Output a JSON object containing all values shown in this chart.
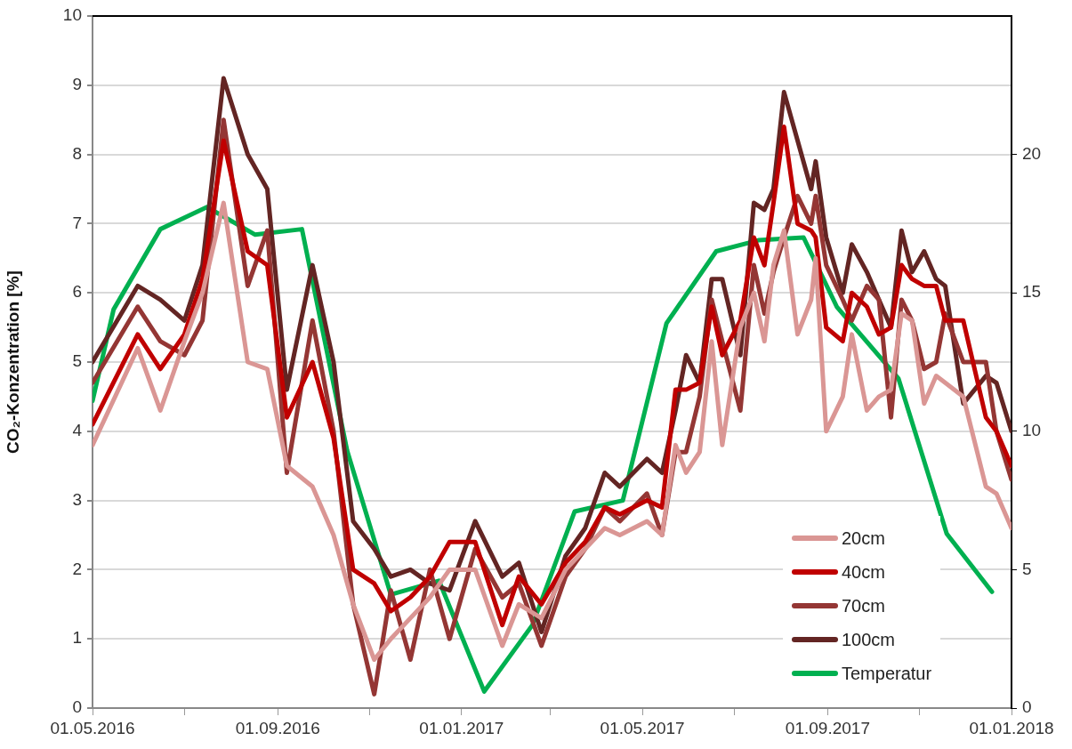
{
  "chart_data": {
    "type": "line",
    "ylabel": "CO₂-Konzentration [%]",
    "xlim": [
      "2016-05-01",
      "2018-01-01"
    ],
    "xticks": [
      {
        "value": "2016-05-01",
        "label": "01.05.2016"
      },
      {
        "value": "2016-07-01",
        "label": null
      },
      {
        "value": "2016-09-01",
        "label": "01.09.2016"
      },
      {
        "value": "2016-11-01",
        "label": null
      },
      {
        "value": "2017-01-01",
        "label": "01.01.2017"
      },
      {
        "value": "2017-03-01",
        "label": null
      },
      {
        "value": "2017-05-01",
        "label": "01.05.2017"
      },
      {
        "value": "2017-07-01",
        "label": null
      },
      {
        "value": "2017-09-01",
        "label": "01.09.2017"
      },
      {
        "value": "2017-11-01",
        "label": null
      },
      {
        "value": "2018-01-01",
        "label": "01.01.2018"
      }
    ],
    "ylim": [
      0,
      10
    ],
    "yticks": [
      0,
      1,
      2,
      3,
      4,
      5,
      6,
      7,
      8,
      9,
      10
    ],
    "y2lim": [
      0,
      25
    ],
    "y2ticks": [
      0,
      5,
      10,
      15,
      20
    ],
    "grid": "y",
    "legend": "bottom right",
    "line_style": "solid",
    "x": [
      "2016-05-01",
      "2016-05-31",
      "2016-06-15",
      "2016-07-01",
      "2016-07-13",
      "2016-07-27",
      "2016-08-12",
      "2016-08-25",
      "2016-09-07",
      "2016-09-24",
      "2016-10-08",
      "2016-10-21",
      "2016-11-04",
      "2016-11-15",
      "2016-11-28",
      "2016-12-11",
      "2016-12-24",
      "2017-01-10",
      "2017-01-28",
      "2017-02-08",
      "2017-02-23",
      "2017-03-11",
      "2017-03-24",
      "2017-04-06",
      "2017-04-16",
      "2017-05-04",
      "2017-05-14",
      "2017-05-23",
      "2017-05-30",
      "2017-06-08",
      "2017-06-16",
      "2017-06-23",
      "2017-07-05",
      "2017-07-14",
      "2017-07-21",
      "2017-07-27",
      "2017-08-03",
      "2017-08-12",
      "2017-08-21",
      "2017-08-24",
      "2017-08-31",
      "2017-09-11",
      "2017-09-17",
      "2017-09-27",
      "2017-10-05",
      "2017-10-13",
      "2017-10-20",
      "2017-10-27",
      "2017-11-04",
      "2017-11-12",
      "2017-11-18",
      "2017-11-30",
      "2017-12-15",
      "2017-12-22",
      "2018-01-01"
    ],
    "series": [
      {
        "name": "20cm",
        "color": "#da9694",
        "values": [
          3.8,
          5.2,
          4.3,
          5.3,
          6.0,
          7.3,
          5.0,
          4.9,
          3.5,
          3.2,
          2.5,
          1.5,
          0.7,
          1.0,
          1.3,
          1.6,
          2.0,
          2.0,
          0.9,
          1.5,
          1.3,
          2.0,
          2.3,
          2.6,
          2.5,
          2.7,
          2.5,
          3.8,
          3.4,
          3.7,
          5.3,
          3.8,
          5.5,
          6.0,
          5.3,
          6.4,
          6.9,
          5.4,
          5.9,
          6.5,
          4.0,
          4.5,
          5.4,
          4.3,
          4.5,
          4.6,
          5.7,
          5.6,
          4.4,
          4.8,
          4.7,
          4.5,
          3.2,
          3.1,
          2.6
        ]
      },
      {
        "name": "40cm",
        "color": "#c00000",
        "values": [
          4.1,
          5.4,
          4.9,
          5.4,
          6.2,
          8.2,
          6.6,
          6.4,
          4.2,
          5.0,
          3.9,
          2.0,
          1.8,
          1.4,
          1.6,
          1.9,
          2.4,
          2.4,
          1.2,
          1.9,
          1.5,
          2.1,
          2.4,
          2.9,
          2.8,
          3.0,
          2.9,
          4.6,
          4.6,
          4.7,
          5.8,
          5.1,
          5.6,
          6.8,
          6.4,
          7.3,
          8.4,
          7.0,
          6.9,
          6.8,
          5.5,
          5.3,
          6.0,
          5.8,
          5.4,
          5.5,
          6.4,
          6.2,
          6.1,
          6.1,
          5.6,
          5.6,
          4.2,
          4.0,
          3.5
        ]
      },
      {
        "name": "70cm",
        "color": "#943634",
        "values": [
          4.7,
          5.8,
          5.3,
          5.1,
          5.6,
          8.5,
          6.1,
          6.9,
          3.4,
          5.6,
          4.0,
          1.5,
          0.2,
          1.7,
          0.7,
          2.0,
          1.0,
          2.3,
          1.6,
          1.8,
          0.9,
          1.9,
          2.3,
          2.9,
          2.7,
          3.1,
          2.5,
          3.7,
          3.7,
          4.5,
          5.9,
          5.3,
          4.3,
          6.4,
          5.7,
          6.3,
          6.8,
          7.4,
          7.0,
          7.4,
          6.4,
          5.9,
          5.6,
          6.1,
          5.9,
          4.2,
          5.9,
          5.6,
          4.9,
          5.0,
          5.7,
          5.0,
          5.0,
          4.0,
          3.3
        ]
      },
      {
        "name": "100cm",
        "color": "#632523",
        "values": [
          5.0,
          6.1,
          5.9,
          5.6,
          6.4,
          9.1,
          8.0,
          7.5,
          4.6,
          6.4,
          5.0,
          2.7,
          2.3,
          1.9,
          2.0,
          1.8,
          1.7,
          2.7,
          1.9,
          2.1,
          1.1,
          2.2,
          2.6,
          3.4,
          3.2,
          3.6,
          3.4,
          4.3,
          5.1,
          4.7,
          6.2,
          6.2,
          5.1,
          7.3,
          7.2,
          7.5,
          8.9,
          8.2,
          7.5,
          7.9,
          6.8,
          6.0,
          6.7,
          6.3,
          5.9,
          5.5,
          6.9,
          6.3,
          6.6,
          6.2,
          6.1,
          4.4,
          4.8,
          4.7,
          4.0
        ]
      },
      {
        "name": "Temperatur",
        "color": "#00b050",
        "axis": "y2",
        "x": [
          "2016-05-01",
          "2016-05-15",
          "2016-06-15",
          "2016-07-16",
          "2016-08-17",
          "2016-09-17",
          "2016-10-17",
          "2016-11-15",
          "2016-12-17",
          "2017-01-16",
          "2017-02-17",
          "2017-03-17",
          "2017-04-18",
          "2017-05-17",
          "2017-06-19",
          "2017-07-17",
          "2017-08-16",
          "2017-09-07",
          "2017-10-18",
          "2017-11-19",
          "2017-12-19"
        ],
        "values": [
          11.1,
          14.4,
          17.3,
          18.1,
          17.1,
          17.3,
          9.3,
          4.1,
          4.6,
          0.6,
          3.0,
          7.1,
          7.5,
          13.9,
          16.5,
          16.9,
          17.0,
          14.5,
          11.9,
          6.3,
          4.2
        ]
      }
    ]
  }
}
